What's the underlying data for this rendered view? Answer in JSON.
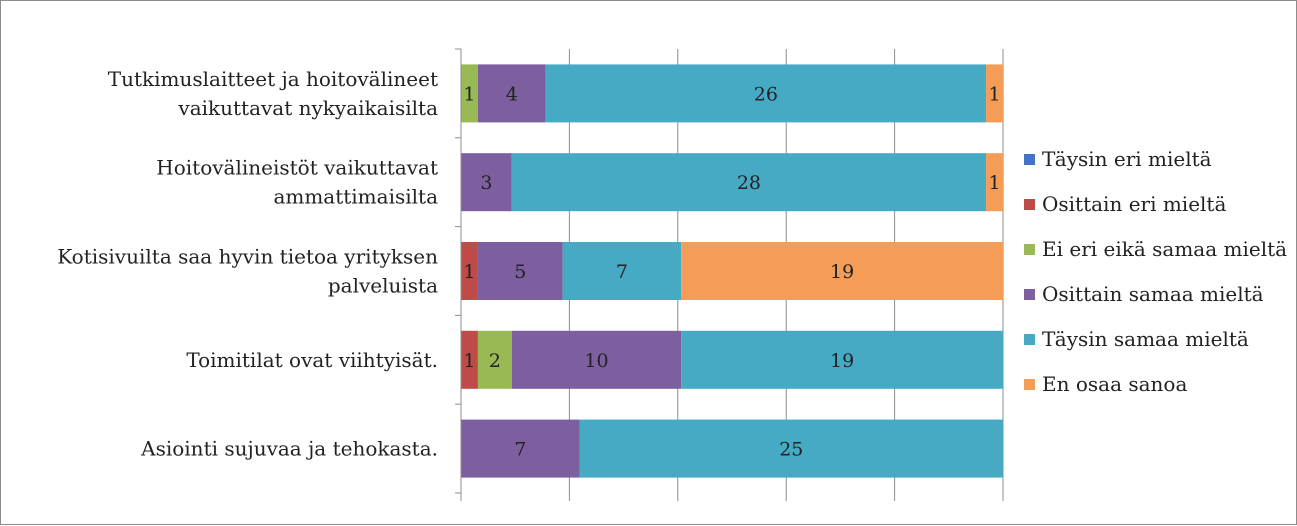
{
  "chart_data": {
    "type": "bar",
    "orientation": "horizontal",
    "stacked": "percent",
    "categories": [
      [
        "Tutkimuslaitteet ja hoitovälineet",
        "vaikuttavat nykyaikaisilta"
      ],
      [
        "Hoitovälineistöt vaikuttavat",
        "ammattimaisilta"
      ],
      [
        "Kotisivuilta saa hyvin tietoa yrityksen",
        "palveluista"
      ],
      [
        "Toimitilat ovat viihtyisät."
      ],
      [
        "Asiointi sujuvaa ja tehokasta."
      ]
    ],
    "series": [
      {
        "name": "Täysin eri mieltä",
        "color": "#4472C4",
        "values": [
          0,
          0,
          0,
          0,
          0
        ]
      },
      {
        "name": "Osittain eri mieltä",
        "color": "#BE4B48",
        "values": [
          0,
          0,
          1,
          1,
          0
        ]
      },
      {
        "name": "Ei eri eikä samaa mieltä",
        "color": "#98B954",
        "values": [
          1,
          0,
          0,
          2,
          0
        ]
      },
      {
        "name": "Osittain samaa mieltä",
        "color": "#7D5FA0",
        "values": [
          4,
          3,
          5,
          10,
          7
        ]
      },
      {
        "name": "Täysin samaa mieltä",
        "color": "#46AAC5",
        "values": [
          26,
          28,
          7,
          19,
          25
        ]
      },
      {
        "name": "En osaa sanoa",
        "color": "#F59D56",
        "values": [
          1,
          1,
          19,
          0,
          0
        ]
      }
    ],
    "xlim": [
      0,
      1
    ],
    "grid": true,
    "legend_position": "right"
  }
}
